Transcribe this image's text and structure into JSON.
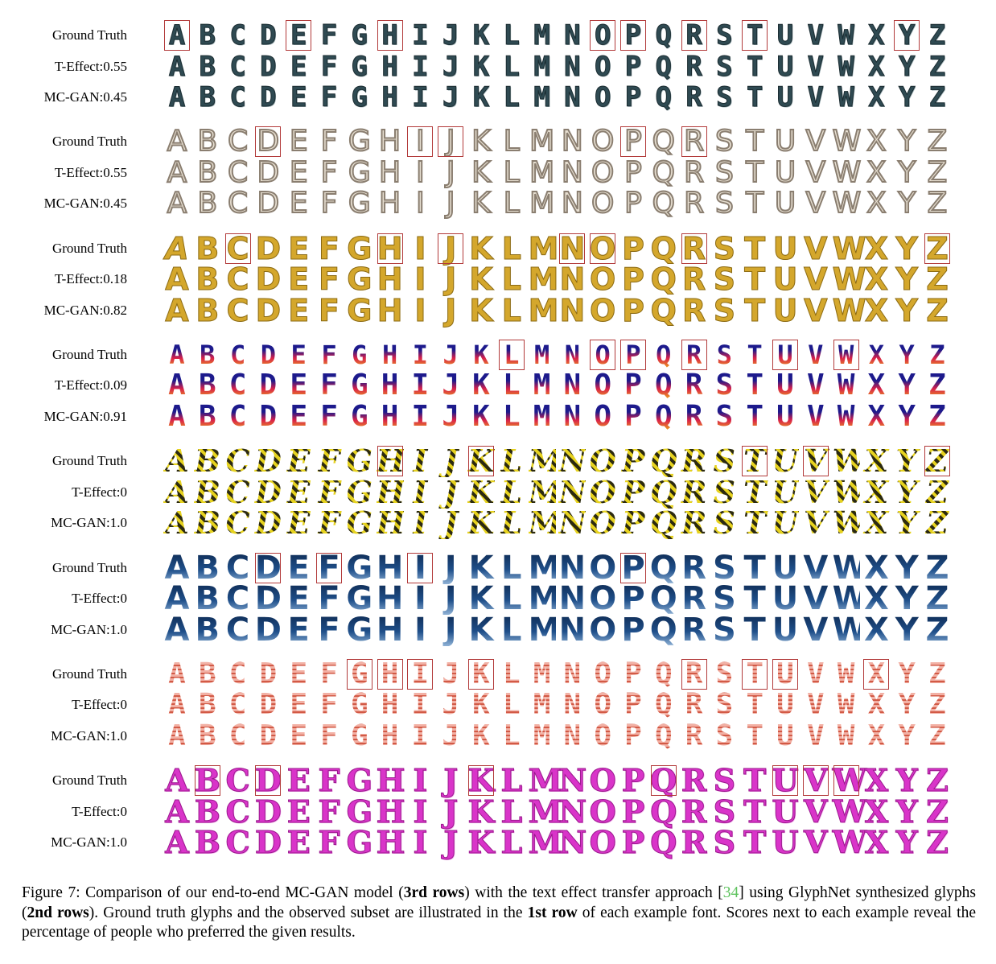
{
  "figure": {
    "alphabet": [
      "A",
      "B",
      "C",
      "D",
      "E",
      "F",
      "G",
      "H",
      "I",
      "J",
      "K",
      "L",
      "M",
      "N",
      "O",
      "P",
      "Q",
      "R",
      "S",
      "T",
      "U",
      "V",
      "W",
      "X",
      "Y",
      "Z"
    ],
    "groups": [
      {
        "style": "slim-metal",
        "colors": {
          "fill": "#2f4a52",
          "stroke": "#1b2c31"
        },
        "rows": [
          {
            "label": "Ground Truth",
            "highlighted": [
              "A",
              "E",
              "H",
              "O",
              "P",
              "R",
              "T",
              "Y"
            ]
          },
          {
            "label": "T-Effect:0.55"
          },
          {
            "label": "MC-GAN:0.45"
          }
        ]
      },
      {
        "style": "outline-beige",
        "colors": {
          "fill": "#e7dfd1",
          "stroke": "#8a7e70"
        },
        "rows": [
          {
            "label": "Ground Truth",
            "highlighted": [
              "D",
              "I",
              "J",
              "P",
              "R"
            ]
          },
          {
            "label": "T-Effect:0.55"
          },
          {
            "label": "MC-GAN:0.45"
          }
        ]
      },
      {
        "style": "gold-inline",
        "colors": {
          "fill": "#d4a72c",
          "stroke": "#8b6a14"
        },
        "rows": [
          {
            "label": "Ground Truth",
            "highlighted": [
              "C",
              "H",
              "J",
              "N",
              "O",
              "R",
              "Z"
            ]
          },
          {
            "label": "T-Effect:0.18"
          },
          {
            "label": "MC-GAN:0.82"
          }
        ]
      },
      {
        "style": "sunset-gradient",
        "colors": {
          "top": "#1d1a8c",
          "mid": "#d8204a",
          "bottom": "#f2c30f"
        },
        "rows": [
          {
            "label": "Ground Truth",
            "highlighted": [
              "L",
              "O",
              "P",
              "R",
              "U",
              "W"
            ]
          },
          {
            "label": "T-Effect:0.09"
          },
          {
            "label": "MC-GAN:0.91"
          }
        ]
      },
      {
        "style": "hazard-stripes",
        "colors": {
          "fill": "#e6d21f",
          "stroke": "#2c2a10"
        },
        "rows": [
          {
            "label": "Ground Truth",
            "highlighted": [
              "H",
              "K",
              "T",
              "V",
              "Z"
            ]
          },
          {
            "label": "T-Effect:0"
          },
          {
            "label": "MC-GAN:1.0"
          }
        ]
      },
      {
        "style": "blue-fade",
        "colors": {
          "fill": "#1f4f8a",
          "stroke": "#0f2c55"
        },
        "rows": [
          {
            "label": "Ground Truth",
            "highlighted": [
              "D",
              "F",
              "I",
              "P"
            ]
          },
          {
            "label": "T-Effect:0"
          },
          {
            "label": "MC-GAN:1.0"
          }
        ]
      },
      {
        "style": "pink-stripes",
        "colors": {
          "fill": "#f2b0a4",
          "stroke": "#d25a46"
        },
        "rows": [
          {
            "label": "Ground Truth",
            "highlighted": [
              "G",
              "H",
              "I",
              "K",
              "R",
              "T",
              "U",
              "X"
            ]
          },
          {
            "label": "T-Effect:0"
          },
          {
            "label": "MC-GAN:1.0"
          }
        ]
      },
      {
        "style": "magenta-serif",
        "colors": {
          "fill": "#d934c9",
          "stroke": "#9a1a8d"
        },
        "rows": [
          {
            "label": "Ground Truth",
            "highlighted": [
              "B",
              "D",
              "K",
              "Q",
              "U",
              "V",
              "W"
            ]
          },
          {
            "label": "T-Effect:0"
          },
          {
            "label": "MC-GAN:1.0"
          }
        ]
      }
    ]
  },
  "caption": {
    "prefix": "Figure 7: Comparison of our end-to-end MC-GAN model (",
    "bold1": "3rd rows",
    "mid1": ") with the text effect transfer approach [",
    "ref": "34",
    "mid2": "] using GlyphNet synthesized glyphs (",
    "bold2": "2nd rows",
    "mid3": "). Ground truth glyphs and the observed subset are illustrated in the ",
    "bold3": "1st row",
    "suffix": " of each example font. Scores next to each example reveal the percentage of people who preferred the given results."
  }
}
